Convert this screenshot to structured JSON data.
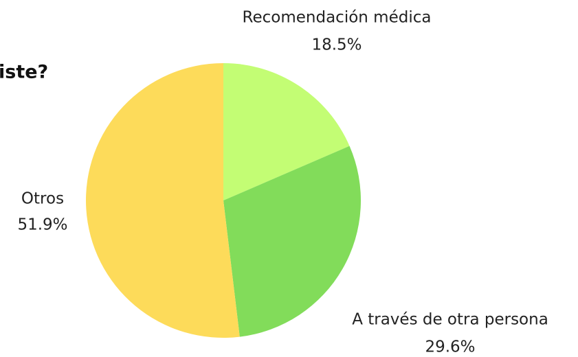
{
  "chart_data": {
    "type": "pie",
    "title": "iste?",
    "categories": [
      "Recomendación médica",
      "A través de otra persona",
      "Otros"
    ],
    "values": [
      18.5,
      29.6,
      51.9
    ],
    "value_labels": [
      "18.5%",
      "29.6%",
      "51.9%"
    ],
    "colors": [
      "#c3fd74",
      "#82dc5a",
      "#fddb5a"
    ]
  }
}
